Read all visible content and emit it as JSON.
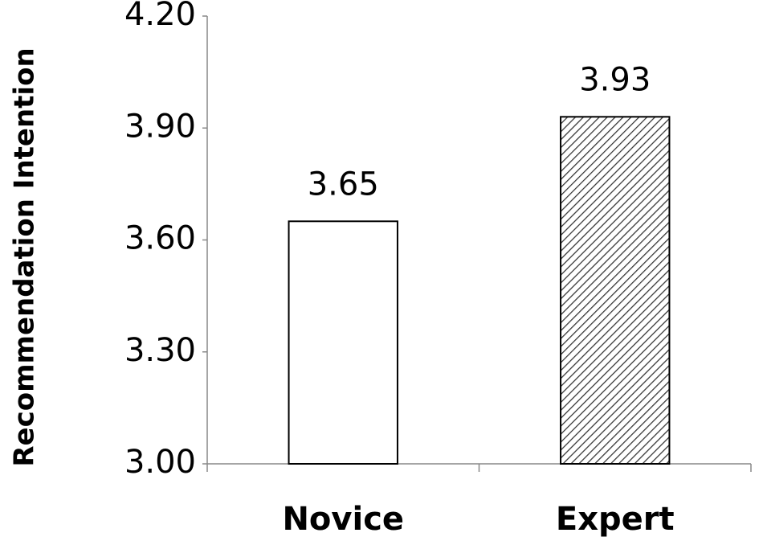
{
  "chart_data": {
    "type": "bar",
    "y_label": "Recommendation Intention",
    "categories": [
      "Novice",
      "Expert"
    ],
    "values": [
      3.65,
      3.93
    ],
    "colors": [
      "#ffffff",
      "#ffffff"
    ],
    "hatch": [
      false,
      true
    ],
    "ylim": [
      3.0,
      4.2
    ],
    "yticks": [
      {
        "value": 3.0,
        "label": "3.00"
      },
      {
        "value": 3.3,
        "label": "3.30"
      },
      {
        "value": 3.6,
        "label": "3.60"
      },
      {
        "value": 3.9,
        "label": "3.90"
      },
      {
        "value": 4.2,
        "label": "4.20"
      }
    ],
    "grid": false
  }
}
